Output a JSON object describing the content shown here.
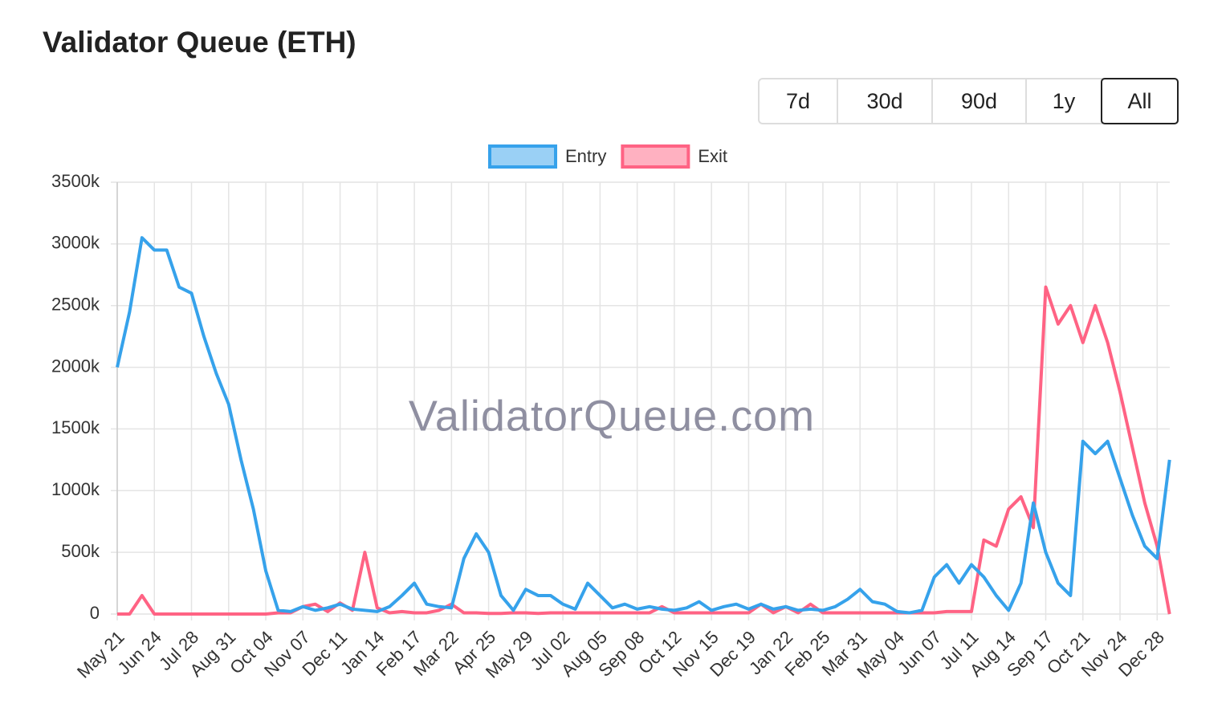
{
  "header": {
    "title": "Validator Queue (ETH)"
  },
  "range_buttons": [
    "7d",
    "30d",
    "90d",
    "1y",
    "All"
  ],
  "watermark": "ValidatorQueue.com",
  "chart_data": {
    "type": "line",
    "categories": [
      "May 21",
      null,
      null,
      "Jun 24",
      null,
      null,
      "Jul 28",
      null,
      null,
      "Aug 31",
      null,
      null,
      "Oct 04",
      null,
      null,
      "Nov 07",
      null,
      null,
      "Dec 11",
      null,
      null,
      "Jan 14",
      null,
      null,
      "Feb 17",
      null,
      null,
      "Mar 22",
      null,
      null,
      "Apr 25",
      null,
      null,
      "May 29",
      null,
      null,
      "Jul 02",
      null,
      null,
      "Aug 05",
      null,
      null,
      "Sep 08",
      null,
      null,
      "Oct 12",
      null,
      null,
      "Nov 15",
      null,
      null,
      "Dec 19",
      null,
      null,
      "Jan 22",
      null,
      null,
      "Feb 25",
      null,
      null,
      "Mar 31",
      null,
      null,
      "May 04",
      null,
      null,
      "Jun 07",
      null,
      null,
      "Jul 11",
      null,
      null,
      "Aug 14",
      null,
      null,
      "Sep 17",
      null,
      null,
      "Oct 21",
      null,
      null,
      "Nov 24",
      null,
      null,
      "Dec 28",
      null
    ],
    "series": [
      {
        "name": "Entry",
        "color": "#36a2eb",
        "fill": "#9ad0f5",
        "values": [
          2000000,
          2450000,
          3050000,
          2950000,
          2950000,
          2650000,
          2600000,
          2250000,
          1950000,
          1700000,
          1250000,
          850000,
          350000,
          30000,
          20000,
          60000,
          30000,
          50000,
          80000,
          40000,
          30000,
          20000,
          60000,
          150000,
          250000,
          80000,
          60000,
          50000,
          450000,
          650000,
          500000,
          150000,
          30000,
          200000,
          150000,
          150000,
          80000,
          40000,
          250000,
          150000,
          50000,
          80000,
          40000,
          60000,
          40000,
          30000,
          50000,
          100000,
          30000,
          60000,
          80000,
          40000,
          80000,
          40000,
          60000,
          30000,
          40000,
          30000,
          60000,
          120000,
          200000,
          100000,
          80000,
          20000,
          10000,
          30000,
          300000,
          400000,
          250000,
          400000,
          300000,
          150000,
          30000,
          250000,
          900000,
          500000,
          250000,
          150000,
          1400000,
          1300000,
          1400000,
          1100000,
          800000,
          550000,
          450000,
          1250000
        ]
      },
      {
        "name": "Exit",
        "color": "#ff6384",
        "fill": "#ffb1c1",
        "values": [
          0,
          0,
          150000,
          0,
          0,
          0,
          0,
          0,
          0,
          0,
          0,
          0,
          0,
          10000,
          10000,
          60000,
          80000,
          20000,
          90000,
          30000,
          500000,
          50000,
          10000,
          20000,
          10000,
          10000,
          30000,
          80000,
          10000,
          10000,
          5000,
          5000,
          10000,
          10000,
          5000,
          10000,
          10000,
          10000,
          10000,
          10000,
          10000,
          10000,
          10000,
          10000,
          60000,
          10000,
          10000,
          10000,
          10000,
          10000,
          10000,
          10000,
          80000,
          10000,
          60000,
          10000,
          80000,
          10000,
          10000,
          10000,
          10000,
          10000,
          10000,
          10000,
          10000,
          10000,
          10000,
          20000,
          20000,
          20000,
          600000,
          550000,
          850000,
          950000,
          700000,
          2650000,
          2350000,
          2500000,
          2200000,
          2500000,
          2200000,
          1800000,
          1350000,
          900000,
          550000,
          0
        ]
      }
    ],
    "ylim": [
      0,
      3500000
    ],
    "yticks": [
      {
        "value": 0,
        "label": "0"
      },
      {
        "value": 500000,
        "label": "500k"
      },
      {
        "value": 1000000,
        "label": "1000k"
      },
      {
        "value": 1500000,
        "label": "1500k"
      },
      {
        "value": 2000000,
        "label": "2000k"
      },
      {
        "value": 2500000,
        "label": "2500k"
      },
      {
        "value": 3000000,
        "label": "3000k"
      },
      {
        "value": 3500000,
        "label": "3500k"
      }
    ],
    "grid": true,
    "legend": "top"
  }
}
